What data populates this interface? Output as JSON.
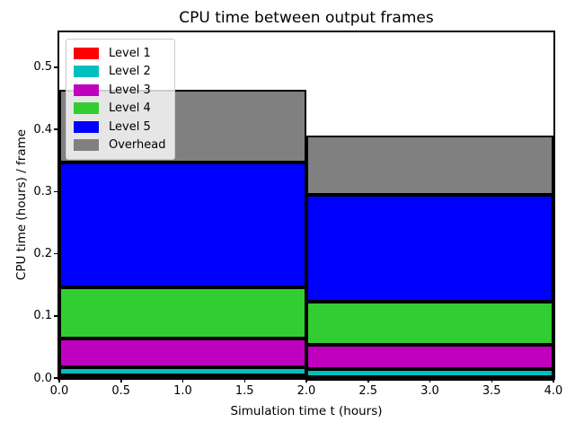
{
  "chart_data": {
    "type": "bar",
    "stacked": true,
    "title": "CPU time between output frames",
    "xlabel": "Simulation time t (hours)",
    "ylabel": "CPU time (hours) / frame",
    "xlim": [
      0.0,
      4.0
    ],
    "ylim": [
      0.0,
      0.556
    ],
    "x_ticks": [
      0.0,
      0.5,
      1.0,
      1.5,
      2.0,
      2.5,
      3.0,
      3.5,
      4.0
    ],
    "y_ticks": [
      0.0,
      0.1,
      0.2,
      0.3,
      0.4,
      0.5
    ],
    "grid": false,
    "legend_position": "upper-left",
    "bar_edges": [
      0.0,
      2.0,
      4.0
    ],
    "bar_edge_color": "#000000",
    "background_color": "#ffffff",
    "series": [
      {
        "name": "Level 1",
        "color": "#ff0000",
        "values": [
          0.005,
          0.002
        ]
      },
      {
        "name": "Level 2",
        "color": "#00bfbf",
        "values": [
          0.013,
          0.012
        ]
      },
      {
        "name": "Level 3",
        "color": "#bf00bf",
        "values": [
          0.046,
          0.039
        ]
      },
      {
        "name": "Level 4",
        "color": "#32cd32",
        "values": [
          0.082,
          0.07
        ]
      },
      {
        "name": "Level 5",
        "color": "#0000ff",
        "values": [
          0.2,
          0.172
        ]
      },
      {
        "name": "Overhead",
        "color": "#808080",
        "values": [
          0.117,
          0.095
        ]
      }
    ],
    "stack_totals": [
      0.463,
      0.39
    ],
    "legend_entries": [
      "Level 1",
      "Level 2",
      "Level 3",
      "Level 4",
      "Level 5",
      "Overhead"
    ]
  }
}
